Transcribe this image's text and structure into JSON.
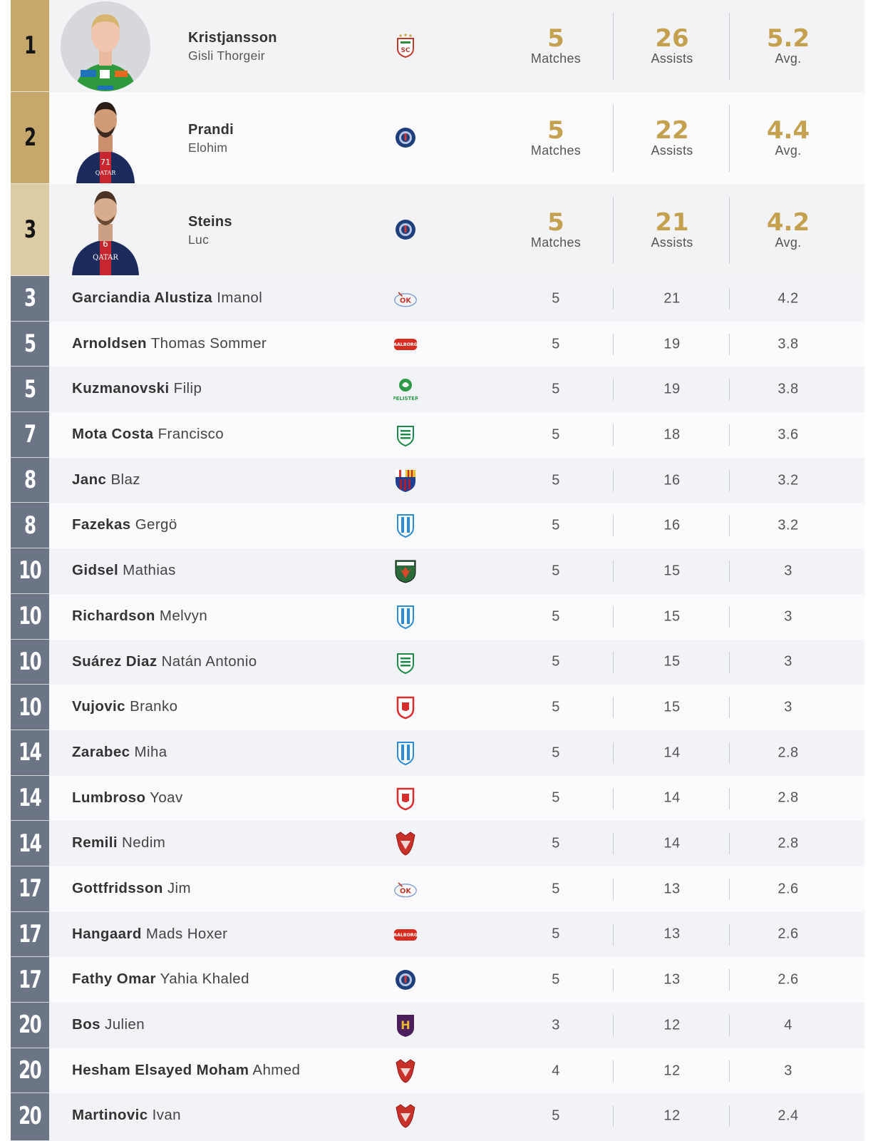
{
  "top3": [
    {
      "rank": "1",
      "last": "Kristjansson",
      "first": "Gisli Thorgeir",
      "club_icon": "sc-magdeburg-logo-icon",
      "matches": "5",
      "assists": "26",
      "avg": "5.2",
      "photo": "player-photo-kristjansson"
    },
    {
      "rank": "2",
      "last": "Prandi",
      "first": "Elohim",
      "club_icon": "paris-sg-logo-icon",
      "matches": "5",
      "assists": "22",
      "avg": "4.4",
      "photo": "player-photo-prandi"
    },
    {
      "rank": "3",
      "last": "Steins",
      "first": "Luc",
      "club_icon": "paris-sg-logo-icon",
      "matches": "5",
      "assists": "21",
      "avg": "4.2",
      "photo": "player-photo-steins"
    }
  ],
  "labels": {
    "matches": "Matches",
    "assists": "Assists",
    "avg": "Avg."
  },
  "rows": [
    {
      "rank": "3",
      "last": "Garciandia Alustiza",
      "first": "Imanol",
      "club_icon": "ok-veszprem-logo-icon",
      "matches": "5",
      "assists": "21",
      "avg": "4.2"
    },
    {
      "rank": "5",
      "last": "Arnoldsen",
      "first": "Thomas Sommer",
      "club_icon": "aalborg-logo-icon",
      "matches": "5",
      "assists": "19",
      "avg": "3.8"
    },
    {
      "rank": "5",
      "last": "Kuzmanovski",
      "first": "Filip",
      "club_icon": "pelister-logo-icon",
      "matches": "5",
      "assists": "19",
      "avg": "3.8"
    },
    {
      "rank": "7",
      "last": "Mota Costa",
      "first": "Francisco",
      "club_icon": "sporting-logo-icon",
      "matches": "5",
      "assists": "18",
      "avg": "3.6"
    },
    {
      "rank": "8",
      "last": "Janc",
      "first": "Blaz",
      "club_icon": "barcelona-logo-icon",
      "matches": "5",
      "assists": "16",
      "avg": "3.2"
    },
    {
      "rank": "8",
      "last": "Fazekas",
      "first": "Gergö",
      "club_icon": "wisla-plock-logo-icon",
      "matches": "5",
      "assists": "16",
      "avg": "3.2"
    },
    {
      "rank": "10",
      "last": "Gidsel",
      "first": "Mathias",
      "club_icon": "fuchse-berlin-logo-icon",
      "matches": "5",
      "assists": "15",
      "avg": "3"
    },
    {
      "rank": "10",
      "last": "Richardson",
      "first": "Melvyn",
      "club_icon": "wisla-plock-logo-icon",
      "matches": "5",
      "assists": "15",
      "avg": "3"
    },
    {
      "rank": "10",
      "last": "Suárez Diaz",
      "first": "Natán Antonio",
      "club_icon": "sporting-logo-icon",
      "matches": "5",
      "assists": "15",
      "avg": "3"
    },
    {
      "rank": "10",
      "last": "Vujovic",
      "first": "Branko",
      "club_icon": "dinamo-bucuresti-logo-icon",
      "matches": "5",
      "assists": "15",
      "avg": "3"
    },
    {
      "rank": "14",
      "last": "Zarabec",
      "first": "Miha",
      "club_icon": "wisla-plock-logo-icon",
      "matches": "5",
      "assists": "14",
      "avg": "2.8"
    },
    {
      "rank": "14",
      "last": "Lumbroso",
      "first": "Yoav",
      "club_icon": "dinamo-bucuresti-logo-icon",
      "matches": "5",
      "assists": "14",
      "avg": "2.8"
    },
    {
      "rank": "14",
      "last": "Remili",
      "first": "Nedim",
      "club_icon": "veszprem-eagle-logo-icon",
      "matches": "5",
      "assists": "14",
      "avg": "2.8"
    },
    {
      "rank": "17",
      "last": "Gottfridsson",
      "first": "Jim",
      "club_icon": "ok-veszprem-logo-icon",
      "matches": "5",
      "assists": "13",
      "avg": "2.6"
    },
    {
      "rank": "17",
      "last": "Hangaard",
      "first": "Mads Hoxer",
      "club_icon": "aalborg-logo-icon",
      "matches": "5",
      "assists": "13",
      "avg": "2.6"
    },
    {
      "rank": "17",
      "last": "Fathy Omar",
      "first": "Yahia Khaled",
      "club_icon": "paris-sg-logo-icon",
      "matches": "5",
      "assists": "13",
      "avg": "2.6"
    },
    {
      "rank": "20",
      "last": "Bos",
      "first": "Julien",
      "club_icon": "hbc-nantes-logo-icon",
      "matches": "3",
      "assists": "12",
      "avg": "4"
    },
    {
      "rank": "20",
      "last": "Hesham Elsayed Moham",
      "first": "Ahmed",
      "club_icon": "veszprem-eagle-logo-icon",
      "matches": "4",
      "assists": "12",
      "avg": "3"
    },
    {
      "rank": "20",
      "last": "Martinovic",
      "first": "Ivan",
      "club_icon": "veszprem-eagle-logo-icon",
      "matches": "5",
      "assists": "12",
      "avg": "2.4"
    }
  ],
  "colors": {
    "gold": "#c4a14e",
    "rank_gold": "#c6a86c",
    "rank_gold_light": "#dccba3",
    "rank_slate": "#6b7586"
  }
}
